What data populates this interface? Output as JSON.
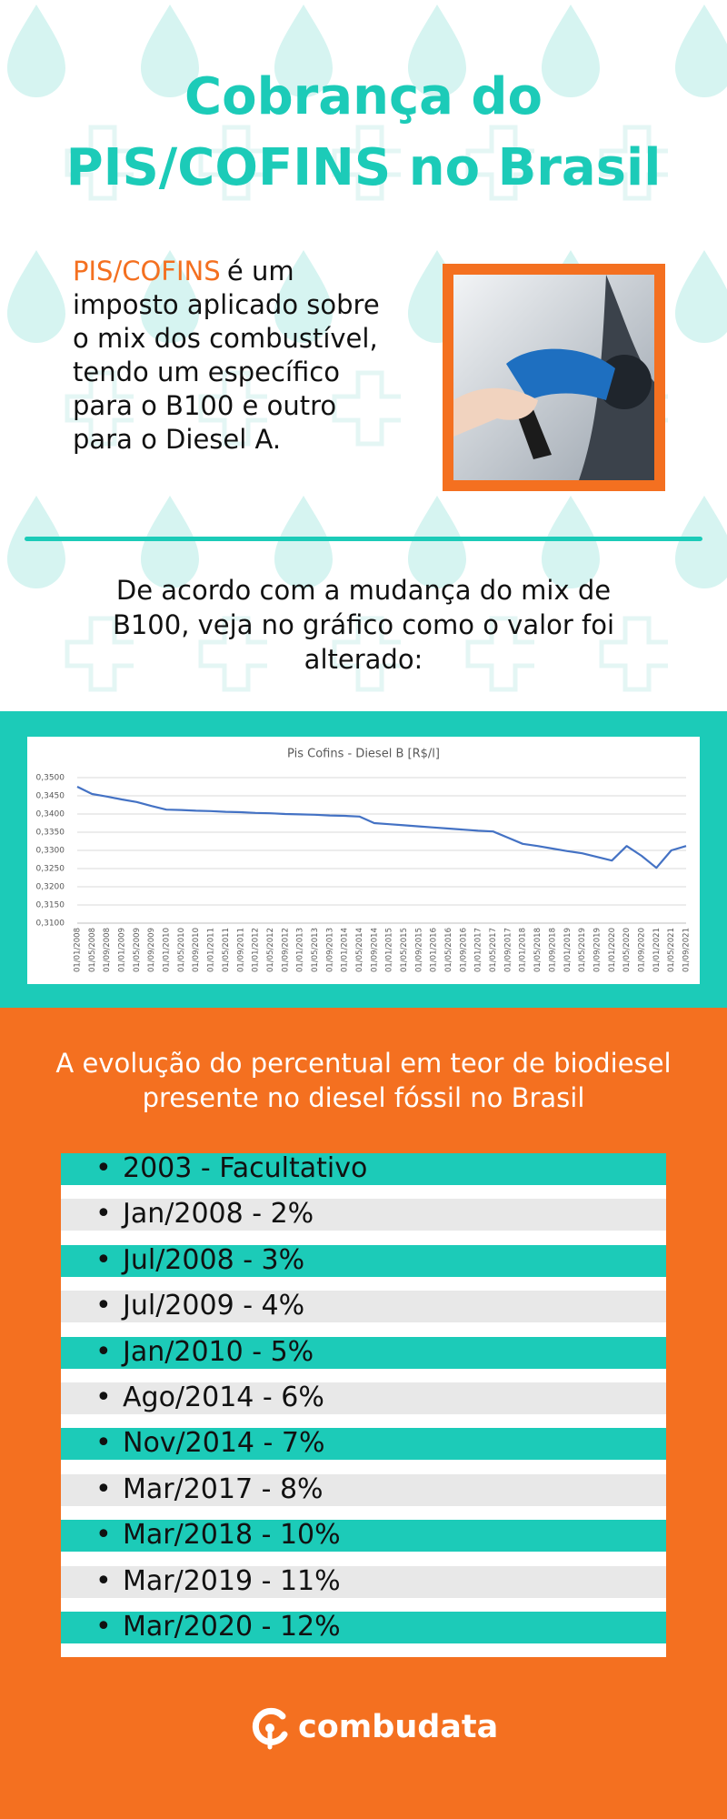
{
  "header": {
    "title_lines": [
      "Cobrança do",
      "PIS/COFINS no Brasil"
    ]
  },
  "intro": {
    "highlight": "PIS/COFINS",
    "text": "é um imposto aplicado sobre o mix dos combustível, tendo um específico para o B100 e outro para o Diesel A."
  },
  "subtitle": "De acordo com a mudança do mix de B100, veja no gráfico como o valor foi alterado:",
  "chart_data": {
    "type": "line",
    "title": "Pis Cofins - Diesel B [R$/l]",
    "color": "#4472c4",
    "grid": true,
    "categories": [
      "01/01/2008",
      "01/05/2008",
      "01/09/2008",
      "01/01/2009",
      "01/05/2009",
      "01/09/2009",
      "01/01/2010",
      "01/05/2010",
      "01/09/2010",
      "01/01/2011",
      "01/05/2011",
      "01/09/2011",
      "01/01/2012",
      "01/05/2012",
      "01/09/2012",
      "01/01/2013",
      "01/05/2013",
      "01/09/2013",
      "01/01/2014",
      "01/05/2014",
      "01/09/2014",
      "01/01/2015",
      "01/05/2015",
      "01/09/2015",
      "01/01/2016",
      "01/05/2016",
      "01/09/2016",
      "01/01/2017",
      "01/05/2017",
      "01/09/2017",
      "01/01/2018",
      "01/05/2018",
      "01/09/2018",
      "01/01/2019",
      "01/05/2019",
      "01/09/2019",
      "01/01/2020",
      "01/05/2020",
      "01/09/2020",
      "01/01/2021",
      "01/05/2021",
      "01/09/2021"
    ],
    "values": [
      0.3475,
      0.3455,
      0.3448,
      0.344,
      0.3433,
      0.3422,
      0.3412,
      0.3411,
      0.3409,
      0.3408,
      0.3406,
      0.3405,
      0.3403,
      0.3402,
      0.34,
      0.3399,
      0.3398,
      0.3396,
      0.3395,
      0.3393,
      0.3375,
      0.3372,
      0.3369,
      0.3366,
      0.3363,
      0.336,
      0.3357,
      0.3354,
      0.3352,
      0.3335,
      0.3318,
      0.3312,
      0.3305,
      0.3298,
      0.3292,
      0.3282,
      0.3272,
      0.3312,
      0.3285,
      0.3252,
      0.33,
      0.3312
    ],
    "ylim": [
      0.31,
      0.35
    ],
    "yticks": [
      {
        "value": 0.31,
        "label": "0,3100"
      },
      {
        "value": 0.315,
        "label": "0,3150"
      },
      {
        "value": 0.32,
        "label": "0,3200"
      },
      {
        "value": 0.325,
        "label": "0,3250"
      },
      {
        "value": 0.33,
        "label": "0,3300"
      },
      {
        "value": 0.335,
        "label": "0,3350"
      },
      {
        "value": 0.34,
        "label": "0,3400"
      },
      {
        "value": 0.345,
        "label": "0,3450"
      },
      {
        "value": 0.35,
        "label": "0,3500"
      }
    ]
  },
  "evolution": {
    "title": "A evolução do percentual em teor de biodiesel presente no diesel fóssil no Brasil",
    "items": [
      "2003 - Facultativo",
      "Jan/2008 - 2%",
      "Jul/2008 - 3%",
      "Jul/2009 - 4%",
      "Jan/2010 - 5%",
      "Ago/2014 - 6%",
      "Nov/2014 - 7%",
      "Mar/2017 - 8%",
      "Mar/2018 - 10%",
      "Mar/2019 - 11%",
      "Mar/2020 - 12%"
    ]
  },
  "footer": {
    "brand": "combudata"
  }
}
